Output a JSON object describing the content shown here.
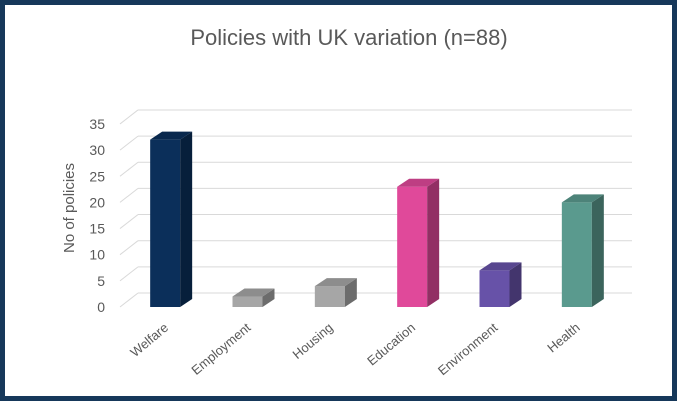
{
  "chart_data": {
    "type": "bar",
    "title": "Policies with UK variation (n=88)",
    "xlabel": "",
    "ylabel": "No of policies",
    "categories": [
      "Welfare",
      "Employment",
      "Housing",
      "Education",
      "Environment",
      "Health"
    ],
    "values": [
      32,
      2,
      4,
      23,
      7,
      20
    ],
    "ylim": [
      0,
      35
    ],
    "yticks": [
      0,
      5,
      10,
      15,
      20,
      25,
      30,
      35
    ],
    "grid": true,
    "legend": "none",
    "style": "3d-column",
    "colors": [
      "#0b2f5a",
      "#a6a6a6",
      "#a6a6a6",
      "#e0499a",
      "#6752a8",
      "#5a9a8e"
    ]
  }
}
